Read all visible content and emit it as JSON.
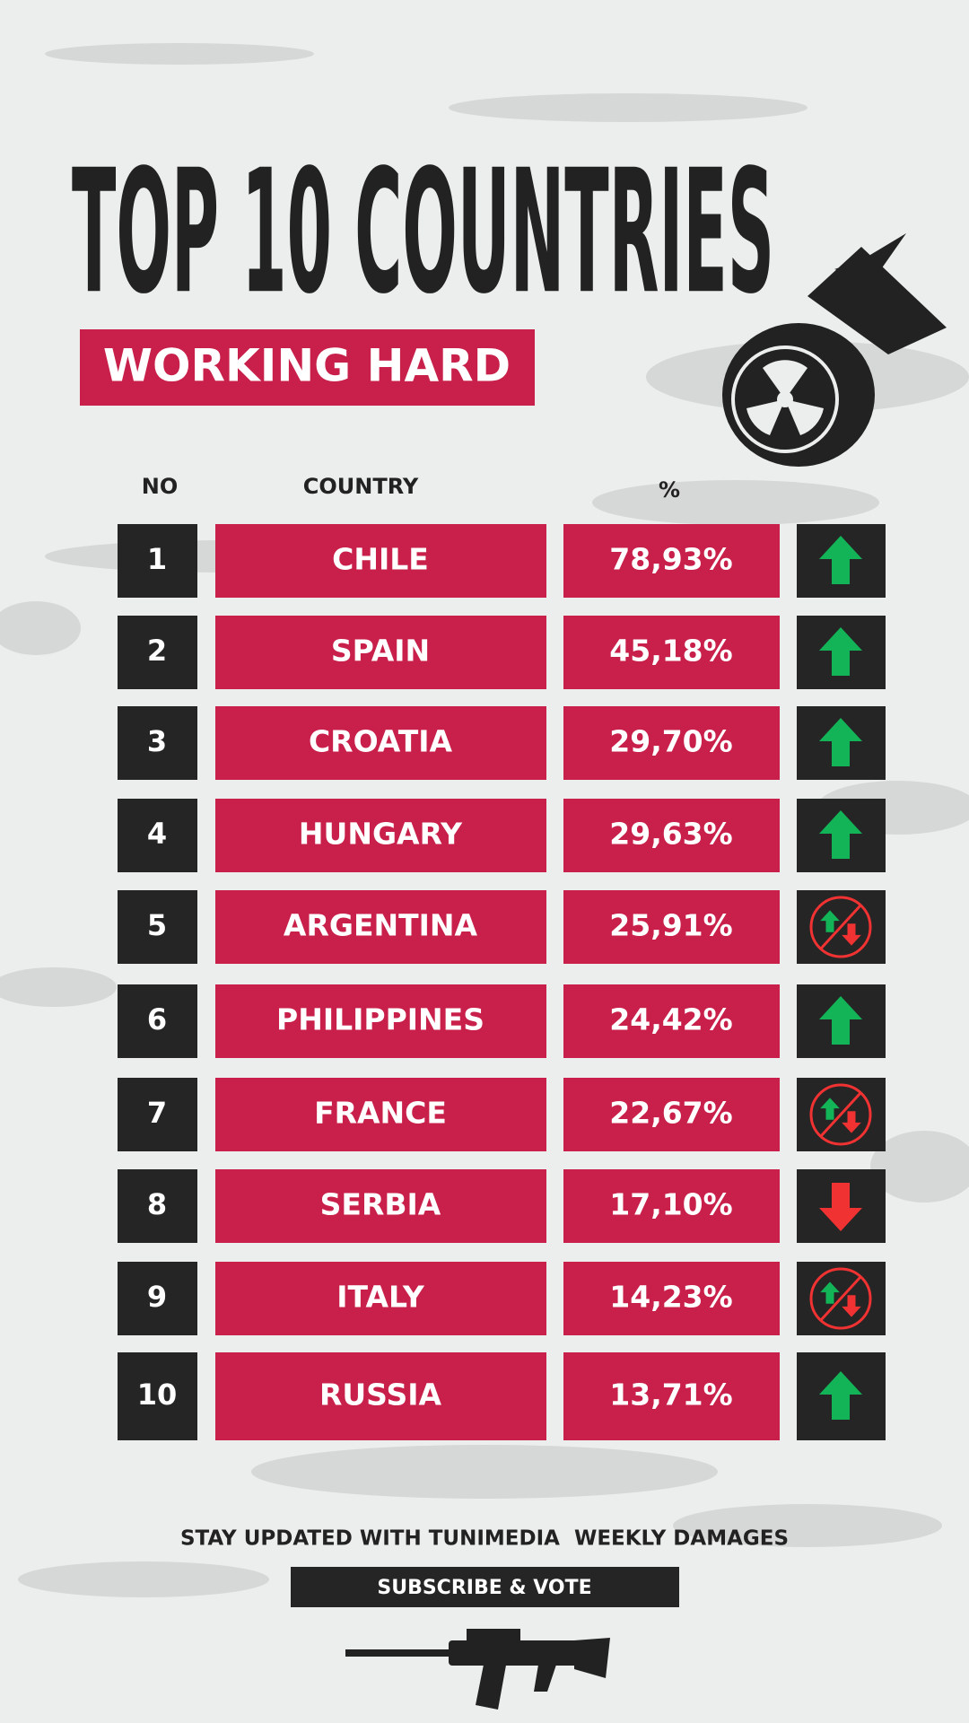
{
  "header": {
    "title": "TOP 10 COUNTRIES",
    "subtitle": "WORKING HARD"
  },
  "table": {
    "columns": [
      "NO",
      "COUNTRY",
      "%"
    ],
    "rows": [
      {
        "no": "1",
        "country": "CHILE",
        "percent": "78,93%",
        "trend": "up"
      },
      {
        "no": "2",
        "country": "SPAIN",
        "percent": "45,18%",
        "trend": "up"
      },
      {
        "no": "3",
        "country": "CROATIA",
        "percent": "29,70%",
        "trend": "up"
      },
      {
        "no": "4",
        "country": "HUNGARY",
        "percent": "29,63%",
        "trend": "up"
      },
      {
        "no": "5",
        "country": "ARGENTINA",
        "percent": "25,91%",
        "trend": "none"
      },
      {
        "no": "6",
        "country": "PHILIPPINES",
        "percent": "24,42%",
        "trend": "up"
      },
      {
        "no": "7",
        "country": "FRANCE",
        "percent": "22,67%",
        "trend": "none"
      },
      {
        "no": "8",
        "country": "SERBIA",
        "percent": "17,10%",
        "trend": "down"
      },
      {
        "no": "9",
        "country": "ITALY",
        "percent": "14,23%",
        "trend": "none"
      },
      {
        "no": "10",
        "country": "RUSSIA",
        "percent": "13,71%",
        "trend": "up"
      }
    ]
  },
  "footer": {
    "text": "STAY UPDATED WITH TUNIMEDIA  WEEKLY DAMAGES",
    "button": "SUBSCRIBE & VOTE"
  }
}
